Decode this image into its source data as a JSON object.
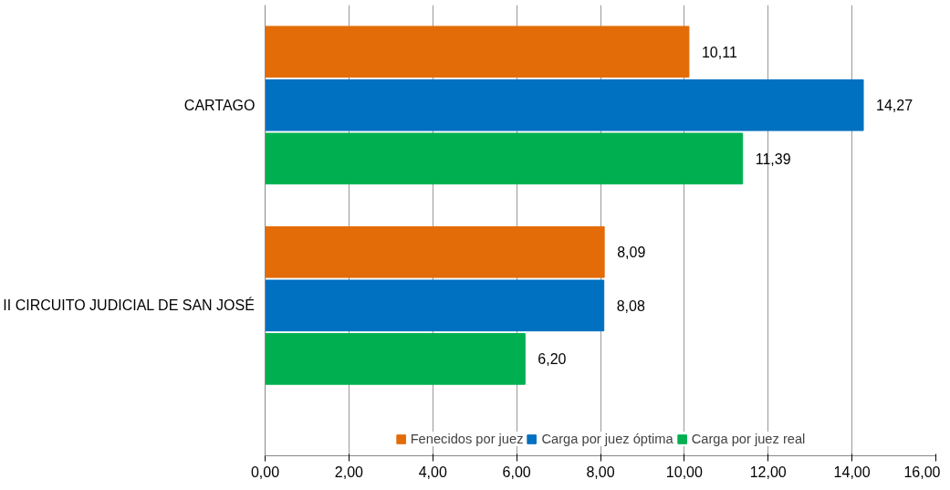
{
  "chart_data": {
    "type": "bar",
    "orientation": "horizontal",
    "categories": [
      "CARTAGO",
      "II CIRCUITO JUDICIAL DE SAN JOSÉ"
    ],
    "series": [
      {
        "name": "Fenecidos por juez",
        "color": "#e36c09",
        "values": [
          10.11,
          8.09
        ],
        "value_labels": [
          "10,11",
          "8,09"
        ]
      },
      {
        "name": "Carga por juez óptima",
        "color": "#0070c0",
        "values": [
          14.27,
          8.08
        ],
        "value_labels": [
          "14,27",
          "8,08"
        ]
      },
      {
        "name": "Carga por juez real",
        "color": "#00b050",
        "values": [
          11.39,
          6.2
        ],
        "value_labels": [
          "11,39",
          "6,20"
        ]
      }
    ],
    "xlim": [
      0,
      16
    ],
    "xticks": [
      {
        "value": 0,
        "label": "0,00"
      },
      {
        "value": 2,
        "label": "2,00"
      },
      {
        "value": 4,
        "label": "4,00"
      },
      {
        "value": 6,
        "label": "6,00"
      },
      {
        "value": 8,
        "label": "8,00"
      },
      {
        "value": 10,
        "label": "10,00"
      },
      {
        "value": 12,
        "label": "12,00"
      },
      {
        "value": 14,
        "label": "14,00"
      },
      {
        "value": 16,
        "label": "16,00"
      }
    ],
    "grid": "x",
    "legend": "bottom"
  }
}
